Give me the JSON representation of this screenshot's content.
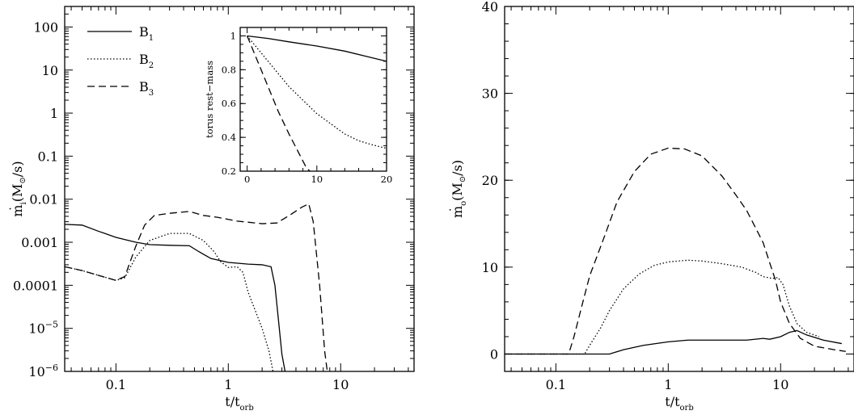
{
  "chart_data": [
    {
      "type": "line",
      "panel": "left",
      "xscale": "log",
      "yscale": "log",
      "xlim": [
        0.035,
        45
      ],
      "ylim": [
        1e-06,
        300
      ],
      "xticks": [
        {
          "v": 0.1,
          "label": "0.1"
        },
        {
          "v": 1,
          "label": "1"
        },
        {
          "v": 10,
          "label": "10"
        }
      ],
      "yticks": [
        {
          "v": 100,
          "label": "100"
        },
        {
          "v": 10,
          "label": "10"
        },
        {
          "v": 1,
          "label": "1"
        },
        {
          "v": 0.1,
          "label": "0.1"
        },
        {
          "v": 0.01,
          "label": "0.01"
        },
        {
          "v": 0.001,
          "label": "0.001"
        },
        {
          "v": 0.0001,
          "label": "0.0001"
        },
        {
          "v": 1e-05,
          "label": "10",
          "exp": "−5"
        },
        {
          "v": 1e-06,
          "label": "10",
          "exp": "−6"
        }
      ],
      "xlabel": {
        "base": "t/t",
        "sub": "orb"
      },
      "ylabel": {
        "base": "m",
        "dot": "˙",
        "sub": "i",
        "rest": "(M",
        "sun": "⊙",
        "tail": "/s)"
      },
      "legend": {
        "position": "top-left"
      },
      "series": [
        {
          "name": "B",
          "sub": "1",
          "style": "solid",
          "points": [
            [
              0.035,
              0.0026
            ],
            [
              0.05,
              0.0025
            ],
            [
              0.07,
              0.0018
            ],
            [
              0.1,
              0.0013
            ],
            [
              0.15,
              0.001
            ],
            [
              0.2,
              0.00088
            ],
            [
              0.3,
              0.00085
            ],
            [
              0.45,
              0.00083
            ],
            [
              0.55,
              0.0006
            ],
            [
              0.7,
              0.00042
            ],
            [
              1,
              0.00034
            ],
            [
              1.5,
              0.00031
            ],
            [
              2,
              0.0003
            ],
            [
              2.4,
              0.00027
            ],
            [
              2.6,
              0.0001
            ],
            [
              2.8,
              1.5e-05
            ],
            [
              3.0,
              2.5e-06
            ],
            [
              3.2,
              1e-06
            ]
          ]
        },
        {
          "name": "B",
          "sub": "2",
          "style": "dotted",
          "points": [
            [
              0.035,
              0.00027
            ],
            [
              0.05,
              0.00022
            ],
            [
              0.07,
              0.00017
            ],
            [
              0.1,
              0.00013
            ],
            [
              0.12,
              0.00015
            ],
            [
              0.15,
              0.00045
            ],
            [
              0.2,
              0.0011
            ],
            [
              0.3,
              0.0016
            ],
            [
              0.45,
              0.0016
            ],
            [
              0.6,
              0.0011
            ],
            [
              0.75,
              0.0006
            ],
            [
              0.85,
              0.00036
            ],
            [
              1,
              0.00026
            ],
            [
              1.2,
              0.00027
            ],
            [
              1.35,
              0.0002
            ],
            [
              1.5,
              7e-05
            ],
            [
              1.7,
              3e-05
            ],
            [
              2.0,
              1e-05
            ],
            [
              2.3,
              3e-06
            ],
            [
              2.5,
              1e-06
            ]
          ]
        },
        {
          "name": "B",
          "sub": "3",
          "style": "dashed",
          "points": [
            [
              0.035,
              0.00027
            ],
            [
              0.05,
              0.00022
            ],
            [
              0.07,
              0.00017
            ],
            [
              0.1,
              0.00013
            ],
            [
              0.12,
              0.00016
            ],
            [
              0.15,
              0.0008
            ],
            [
              0.18,
              0.0025
            ],
            [
              0.22,
              0.0042
            ],
            [
              0.3,
              0.0047
            ],
            [
              0.45,
              0.0052
            ],
            [
              0.6,
              0.0042
            ],
            [
              0.8,
              0.0038
            ],
            [
              1.2,
              0.0031
            ],
            [
              2,
              0.0027
            ],
            [
              2.7,
              0.0028
            ],
            [
              3.5,
              0.0042
            ],
            [
              4.5,
              0.0065
            ],
            [
              5.2,
              0.0078
            ],
            [
              5.7,
              0.003
            ],
            [
              6.5,
              0.0001
            ],
            [
              7.2,
              3e-06
            ],
            [
              7.6,
              1e-06
            ]
          ]
        }
      ]
    },
    {
      "type": "line",
      "panel": "inset",
      "xscale": "linear",
      "yscale": "linear",
      "xlim": [
        -1,
        20
      ],
      "ylim": [
        0.2,
        1.05
      ],
      "xticks": [
        {
          "v": 0,
          "label": "0"
        },
        {
          "v": 10,
          "label": "10"
        },
        {
          "v": 20,
          "label": "20"
        }
      ],
      "yticks": [
        {
          "v": 1,
          "label": "1"
        },
        {
          "v": 0.8,
          "label": "0.8"
        },
        {
          "v": 0.6,
          "label": "0.6"
        },
        {
          "v": 0.4,
          "label": "0.4"
        },
        {
          "v": 0.2,
          "label": "0.2"
        }
      ],
      "ylabel": "torus rest−mass",
      "series": [
        {
          "name": "B",
          "sub": "1",
          "style": "solid",
          "points": [
            [
              0,
              1
            ],
            [
              3,
              0.985
            ],
            [
              6,
              0.965
            ],
            [
              10,
              0.94
            ],
            [
              14,
              0.91
            ],
            [
              17,
              0.88
            ],
            [
              20,
              0.85
            ]
          ]
        },
        {
          "name": "B",
          "sub": "2",
          "style": "dotted",
          "points": [
            [
              0,
              1
            ],
            [
              2,
              0.9
            ],
            [
              4,
              0.8
            ],
            [
              6,
              0.7
            ],
            [
              8,
              0.62
            ],
            [
              10,
              0.54
            ],
            [
              12,
              0.48
            ],
            [
              14,
              0.42
            ],
            [
              16,
              0.38
            ],
            [
              18,
              0.355
            ],
            [
              20,
              0.335
            ]
          ]
        },
        {
          "name": "B",
          "sub": "3",
          "style": "dashed",
          "points": [
            [
              0,
              1
            ],
            [
              1.5,
              0.85
            ],
            [
              3,
              0.7
            ],
            [
              4.5,
              0.55
            ],
            [
              6,
              0.42
            ],
            [
              7.5,
              0.3
            ],
            [
              8.5,
              0.22
            ],
            [
              9,
              0.2
            ]
          ]
        }
      ]
    },
    {
      "type": "line",
      "panel": "right",
      "xscale": "log",
      "yscale": "linear",
      "xlim": [
        0.035,
        45
      ],
      "ylim": [
        -2,
        40
      ],
      "xticks": [
        {
          "v": 0.1,
          "label": "0.1"
        },
        {
          "v": 1,
          "label": "1"
        },
        {
          "v": 10,
          "label": "10"
        }
      ],
      "yticks": [
        {
          "v": 40,
          "label": "40"
        },
        {
          "v": 30,
          "label": "30"
        },
        {
          "v": 20,
          "label": "20"
        },
        {
          "v": 10,
          "label": "10"
        },
        {
          "v": 0,
          "label": "0"
        }
      ],
      "xlabel": {
        "base": "t/t",
        "sub": "orb"
      },
      "ylabel": {
        "base": "m",
        "dot": "˙",
        "sub": "o",
        "rest": "(M",
        "sun": "⊙",
        "tail": "/s)"
      },
      "series": [
        {
          "name": "B",
          "sub": "1",
          "style": "solid",
          "points": [
            [
              0.035,
              0
            ],
            [
              0.3,
              0
            ],
            [
              0.4,
              0.5
            ],
            [
              0.6,
              1.0
            ],
            [
              1,
              1.4
            ],
            [
              1.5,
              1.6
            ],
            [
              2,
              1.6
            ],
            [
              3,
              1.6
            ],
            [
              5,
              1.6
            ],
            [
              7,
              1.8
            ],
            [
              8,
              1.7
            ],
            [
              10,
              2.0
            ],
            [
              12,
              2.5
            ],
            [
              14,
              2.7
            ],
            [
              17,
              2.2
            ],
            [
              24,
              1.6
            ],
            [
              35,
              1.2
            ]
          ]
        },
        {
          "name": "B",
          "sub": "2",
          "style": "dotted",
          "points": [
            [
              0.035,
              0
            ],
            [
              0.18,
              0
            ],
            [
              0.2,
              1
            ],
            [
              0.25,
              3
            ],
            [
              0.3,
              5
            ],
            [
              0.4,
              7.5
            ],
            [
              0.55,
              9.2
            ],
            [
              0.75,
              10.2
            ],
            [
              1,
              10.6
            ],
            [
              1.5,
              10.8
            ],
            [
              2,
              10.7
            ],
            [
              3,
              10.4
            ],
            [
              4.5,
              10
            ],
            [
              6,
              9.4
            ],
            [
              7,
              8.9
            ],
            [
              8.5,
              8.7
            ],
            [
              9.5,
              8.8
            ],
            [
              10.5,
              8
            ],
            [
              12,
              5.5
            ],
            [
              14,
              3.5
            ],
            [
              17,
              2.5
            ],
            [
              22,
              2
            ]
          ]
        },
        {
          "name": "B",
          "sub": "3",
          "style": "dashed",
          "points": [
            [
              0.035,
              0
            ],
            [
              0.13,
              0
            ],
            [
              0.145,
              2
            ],
            [
              0.17,
              5.5
            ],
            [
              0.2,
              9
            ],
            [
              0.27,
              13.5
            ],
            [
              0.35,
              17.5
            ],
            [
              0.5,
              21
            ],
            [
              0.7,
              23
            ],
            [
              1,
              23.7
            ],
            [
              1.4,
              23.6
            ],
            [
              2,
              22.8
            ],
            [
              3,
              20.5
            ],
            [
              4,
              18.3
            ],
            [
              5,
              16.5
            ],
            [
              6,
              14.5
            ],
            [
              7,
              12.8
            ],
            [
              8,
              10.5
            ],
            [
              9,
              8.5
            ],
            [
              10,
              6
            ],
            [
              12,
              3.5
            ],
            [
              15,
              1.8
            ],
            [
              20,
              0.9
            ],
            [
              30,
              0.5
            ],
            [
              38,
              0.3
            ]
          ]
        }
      ]
    }
  ]
}
